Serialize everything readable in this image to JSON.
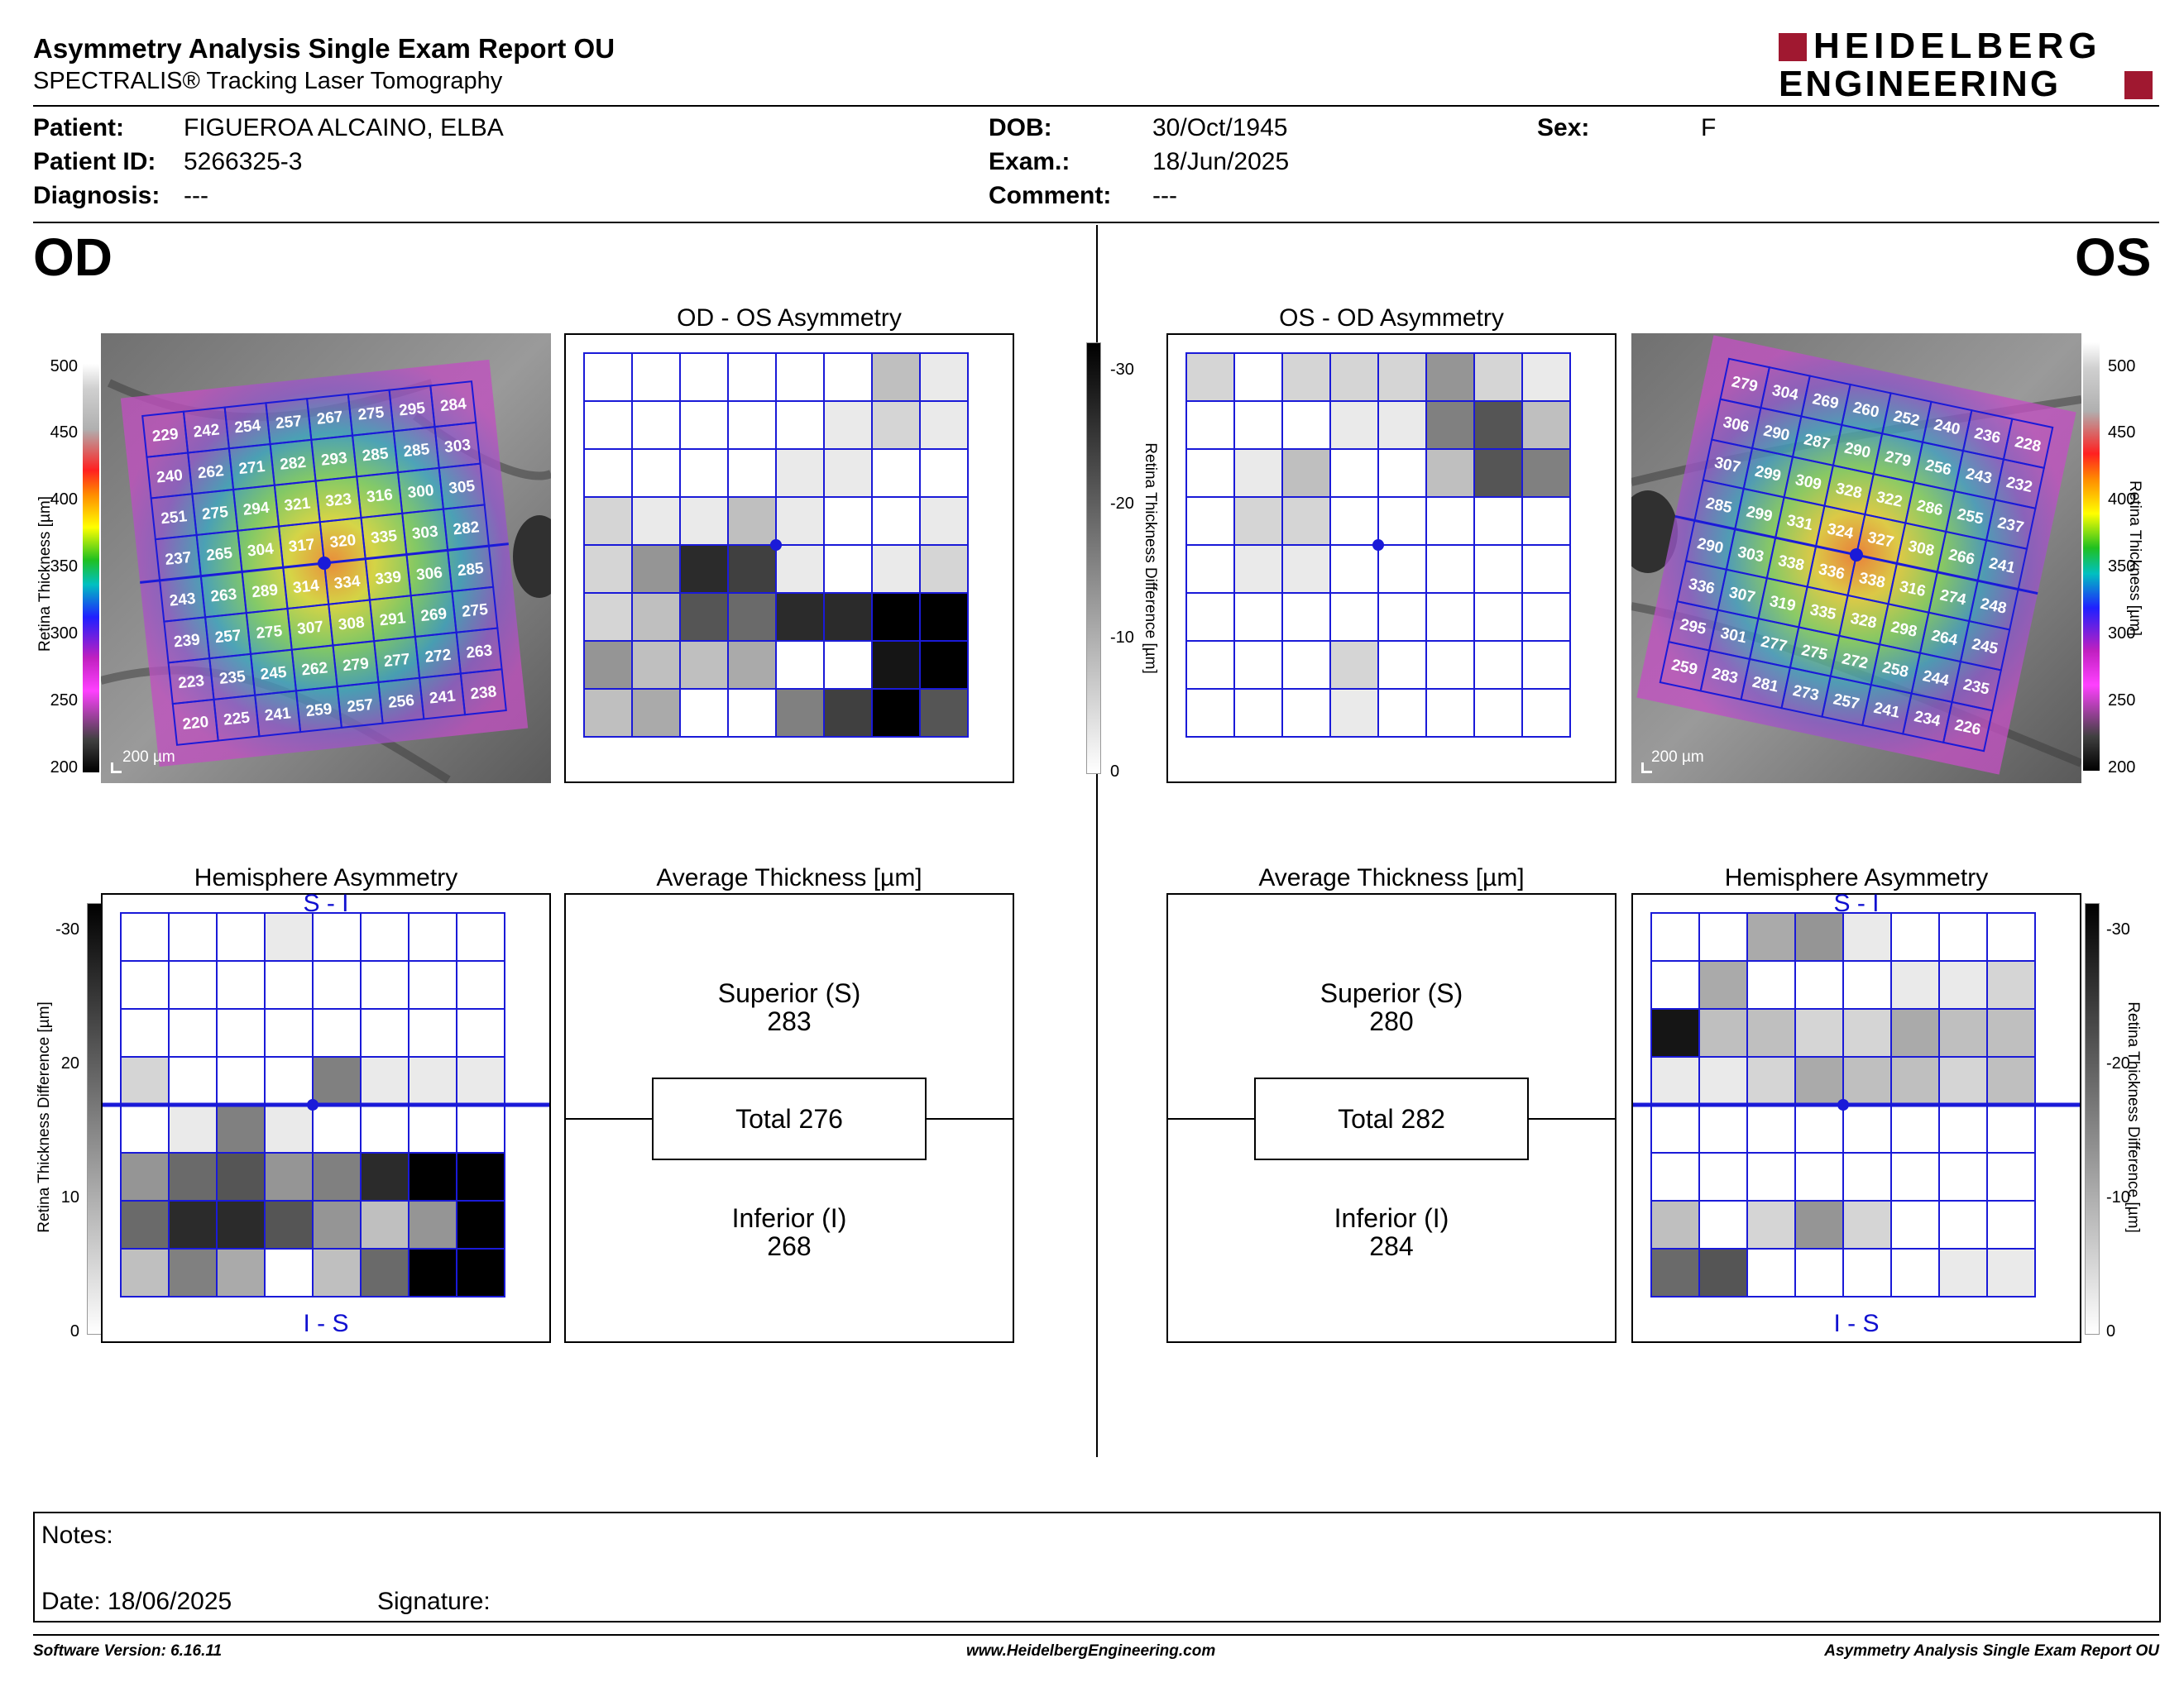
{
  "header": {
    "title": "Asymmetry Analysis Single Exam Report OU",
    "subtitle": "SPECTRALIS® Tracking Laser Tomography",
    "logo_line1": "HEIDELBERG",
    "logo_line2": "ENGINEERING"
  },
  "patient": {
    "patient_label": "Patient:",
    "patient_value": "FIGUEROA ALCAINO, ELBA",
    "id_label": "Patient ID:",
    "id_value": "5266325-3",
    "diag_label": "Diagnosis:",
    "diag_value": "---",
    "dob_label": "DOB:",
    "dob_value": "30/Oct/1945",
    "exam_label": "Exam.:",
    "exam_value": "18/Jun/2025",
    "comment_label": "Comment:",
    "comment_value": "---",
    "sex_label": "Sex:",
    "sex_value": "F"
  },
  "eyes": {
    "left": "OD",
    "right": "OS"
  },
  "titles": {
    "od_os": "OD - OS Asymmetry",
    "os_od": "OS - OD Asymmetry",
    "hemi": "Hemisphere Asymmetry",
    "avg": "Average Thickness [µm]"
  },
  "scales": {
    "thickness_label": "Retina  Thickness [µm]",
    "thickness_ticks": [
      "500",
      "450",
      "400",
      "350",
      "300",
      "250",
      "200"
    ],
    "diff_label": "Retina Thickness Difference [µm]",
    "diff_ticks_top": [
      "-30",
      "-20",
      "-10",
      "0"
    ],
    "diff_ticks_bottom": [
      "-30",
      "20",
      "10",
      "0"
    ],
    "diff_ticks_right": [
      "-30",
      "-20",
      "-10",
      "0"
    ],
    "scale_bar": "200 µm"
  },
  "hemi_labels": {
    "top": "S - I",
    "bottom": "I - S"
  },
  "od": {
    "grid": [
      [
        "229",
        "242",
        "254",
        "257",
        "267",
        "275",
        "295",
        "284"
      ],
      [
        "240",
        "262",
        "271",
        "282",
        "293",
        "285",
        "285",
        "303"
      ],
      [
        "251",
        "275",
        "294",
        "321",
        "323",
        "316",
        "300",
        "305"
      ],
      [
        "237",
        "265",
        "304",
        "317",
        "320",
        "335",
        "303",
        "282"
      ],
      [
        "243",
        "263",
        "289",
        "314",
        "334",
        "339",
        "306",
        "285"
      ],
      [
        "239",
        "257",
        "275",
        "307",
        "308",
        "291",
        "269",
        "275"
      ],
      [
        "223",
        "235",
        "245",
        "262",
        "279",
        "277",
        "272",
        "263"
      ],
      [
        "220",
        "225",
        "241",
        "259",
        "257",
        "256",
        "241",
        "238"
      ]
    ],
    "superior_label": "Superior (S)",
    "superior": "283",
    "total": "Total 276",
    "inferior_label": "Inferior (I)",
    "inferior": "268"
  },
  "os": {
    "grid": [
      [
        "279",
        "304",
        "269",
        "260",
        "252",
        "240",
        "236",
        "228"
      ],
      [
        "306",
        "290",
        "287",
        "290",
        "279",
        "256",
        "243",
        "232"
      ],
      [
        "307",
        "299",
        "309",
        "328",
        "322",
        "286",
        "255",
        "237"
      ],
      [
        "285",
        "299",
        "331",
        "324",
        "327",
        "308",
        "266",
        "241"
      ],
      [
        "290",
        "303",
        "338",
        "336",
        "338",
        "316",
        "274",
        "248"
      ],
      [
        "336",
        "307",
        "319",
        "335",
        "328",
        "298",
        "264",
        "245"
      ],
      [
        "295",
        "301",
        "277",
        "275",
        "272",
        "258",
        "244",
        "235"
      ],
      [
        "259",
        "283",
        "281",
        "273",
        "257",
        "241",
        "234",
        "226"
      ]
    ],
    "superior_label": "Superior (S)",
    "superior": "280",
    "total": "Total 282",
    "inferior_label": "Inferior (I)",
    "inferior": "284"
  },
  "asymmetry_shades": {
    "od_os": [
      [
        0,
        0,
        0,
        0,
        0,
        0,
        3,
        1
      ],
      [
        0,
        0,
        0,
        0,
        0,
        1,
        2,
        1
      ],
      [
        0,
        0,
        0,
        0,
        1,
        1,
        0,
        0
      ],
      [
        2,
        1,
        1,
        3,
        1,
        0,
        0,
        1
      ],
      [
        2,
        5,
        10,
        9,
        1,
        0,
        1,
        2
      ],
      [
        2,
        3,
        8,
        7,
        10,
        10,
        12,
        12
      ],
      [
        5,
        3,
        3,
        4,
        0,
        0,
        11,
        12
      ],
      [
        3,
        4,
        0,
        0,
        6,
        9,
        12,
        8
      ]
    ],
    "os_od": [
      [
        2,
        0,
        2,
        2,
        2,
        5,
        2,
        1
      ],
      [
        0,
        0,
        0,
        1,
        1,
        6,
        8,
        3
      ],
      [
        0,
        1,
        3,
        0,
        0,
        3,
        8,
        6
      ],
      [
        0,
        2,
        2,
        0,
        0,
        0,
        0,
        0
      ],
      [
        0,
        1,
        1,
        0,
        0,
        0,
        0,
        0
      ],
      [
        0,
        0,
        0,
        0,
        0,
        0,
        0,
        0
      ],
      [
        0,
        0,
        0,
        2,
        0,
        0,
        0,
        0
      ],
      [
        0,
        0,
        0,
        1,
        0,
        0,
        0,
        0
      ]
    ],
    "hemi_od": [
      [
        0,
        0,
        0,
        1,
        0,
        0,
        0,
        0
      ],
      [
        0,
        0,
        0,
        0,
        0,
        0,
        0,
        0
      ],
      [
        0,
        0,
        0,
        0,
        0,
        0,
        0,
        0
      ],
      [
        2,
        0,
        0,
        0,
        6,
        1,
        1,
        1
      ],
      [
        0,
        1,
        6,
        1,
        0,
        0,
        0,
        0
      ],
      [
        5,
        7,
        8,
        5,
        6,
        10,
        12,
        12
      ],
      [
        7,
        10,
        10,
        8,
        5,
        3,
        5,
        12
      ],
      [
        3,
        6,
        4,
        0,
        3,
        7,
        12,
        12
      ]
    ],
    "hemi_os": [
      [
        0,
        0,
        4,
        5,
        1,
        0,
        0,
        0
      ],
      [
        0,
        4,
        0,
        0,
        0,
        1,
        1,
        2
      ],
      [
        11,
        3,
        3,
        2,
        2,
        4,
        3,
        3
      ],
      [
        1,
        1,
        2,
        4,
        3,
        3,
        2,
        3
      ],
      [
        0,
        0,
        0,
        0,
        0,
        0,
        0,
        0
      ],
      [
        0,
        0,
        0,
        0,
        0,
        0,
        0,
        0
      ],
      [
        3,
        0,
        2,
        5,
        2,
        0,
        0,
        0
      ],
      [
        7,
        8,
        0,
        0,
        0,
        0,
        1,
        1
      ]
    ]
  },
  "notes": {
    "notes_label": "Notes:",
    "date_label": "Date: 18/06/2025",
    "signature_label": "Signature:"
  },
  "footer": {
    "left": "Software Version: 6.16.11",
    "center": "www.HeidelbergEngineering.com",
    "right": "Asymmetry Analysis Single Exam Report OU"
  },
  "colors": {
    "accent_blue": "#1010d0",
    "logo_red": "#a01830",
    "grid_line": "#1a1ad8"
  }
}
